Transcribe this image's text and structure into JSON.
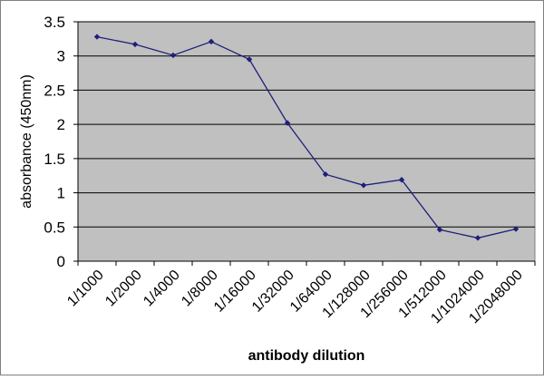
{
  "chart_data": {
    "type": "line",
    "title": "",
    "xlabel": "antibody dilution",
    "ylabel": "absorbance (450nm)",
    "categories": [
      "1/1000",
      "1/2000",
      "1/4000",
      "1/8000",
      "1/16000",
      "1/32000",
      "1/64000",
      "1/128000",
      "1/256000",
      "1/512000",
      "1/1024000",
      "1/2048000"
    ],
    "series": [
      {
        "values": [
          3.28,
          3.17,
          3.01,
          3.21,
          2.95,
          2.02,
          1.27,
          1.11,
          1.19,
          0.46,
          0.34,
          0.47
        ]
      }
    ],
    "ylim": [
      0,
      3.5
    ],
    "yticks": [
      "0",
      "0.5",
      "1",
      "1.5",
      "2",
      "2.5",
      "3",
      "3.5"
    ],
    "grid": true,
    "legend": "none",
    "colors": {
      "line": "#1f1f7a",
      "plot_bg": "#c0c0c0",
      "grid": "#000000"
    }
  }
}
